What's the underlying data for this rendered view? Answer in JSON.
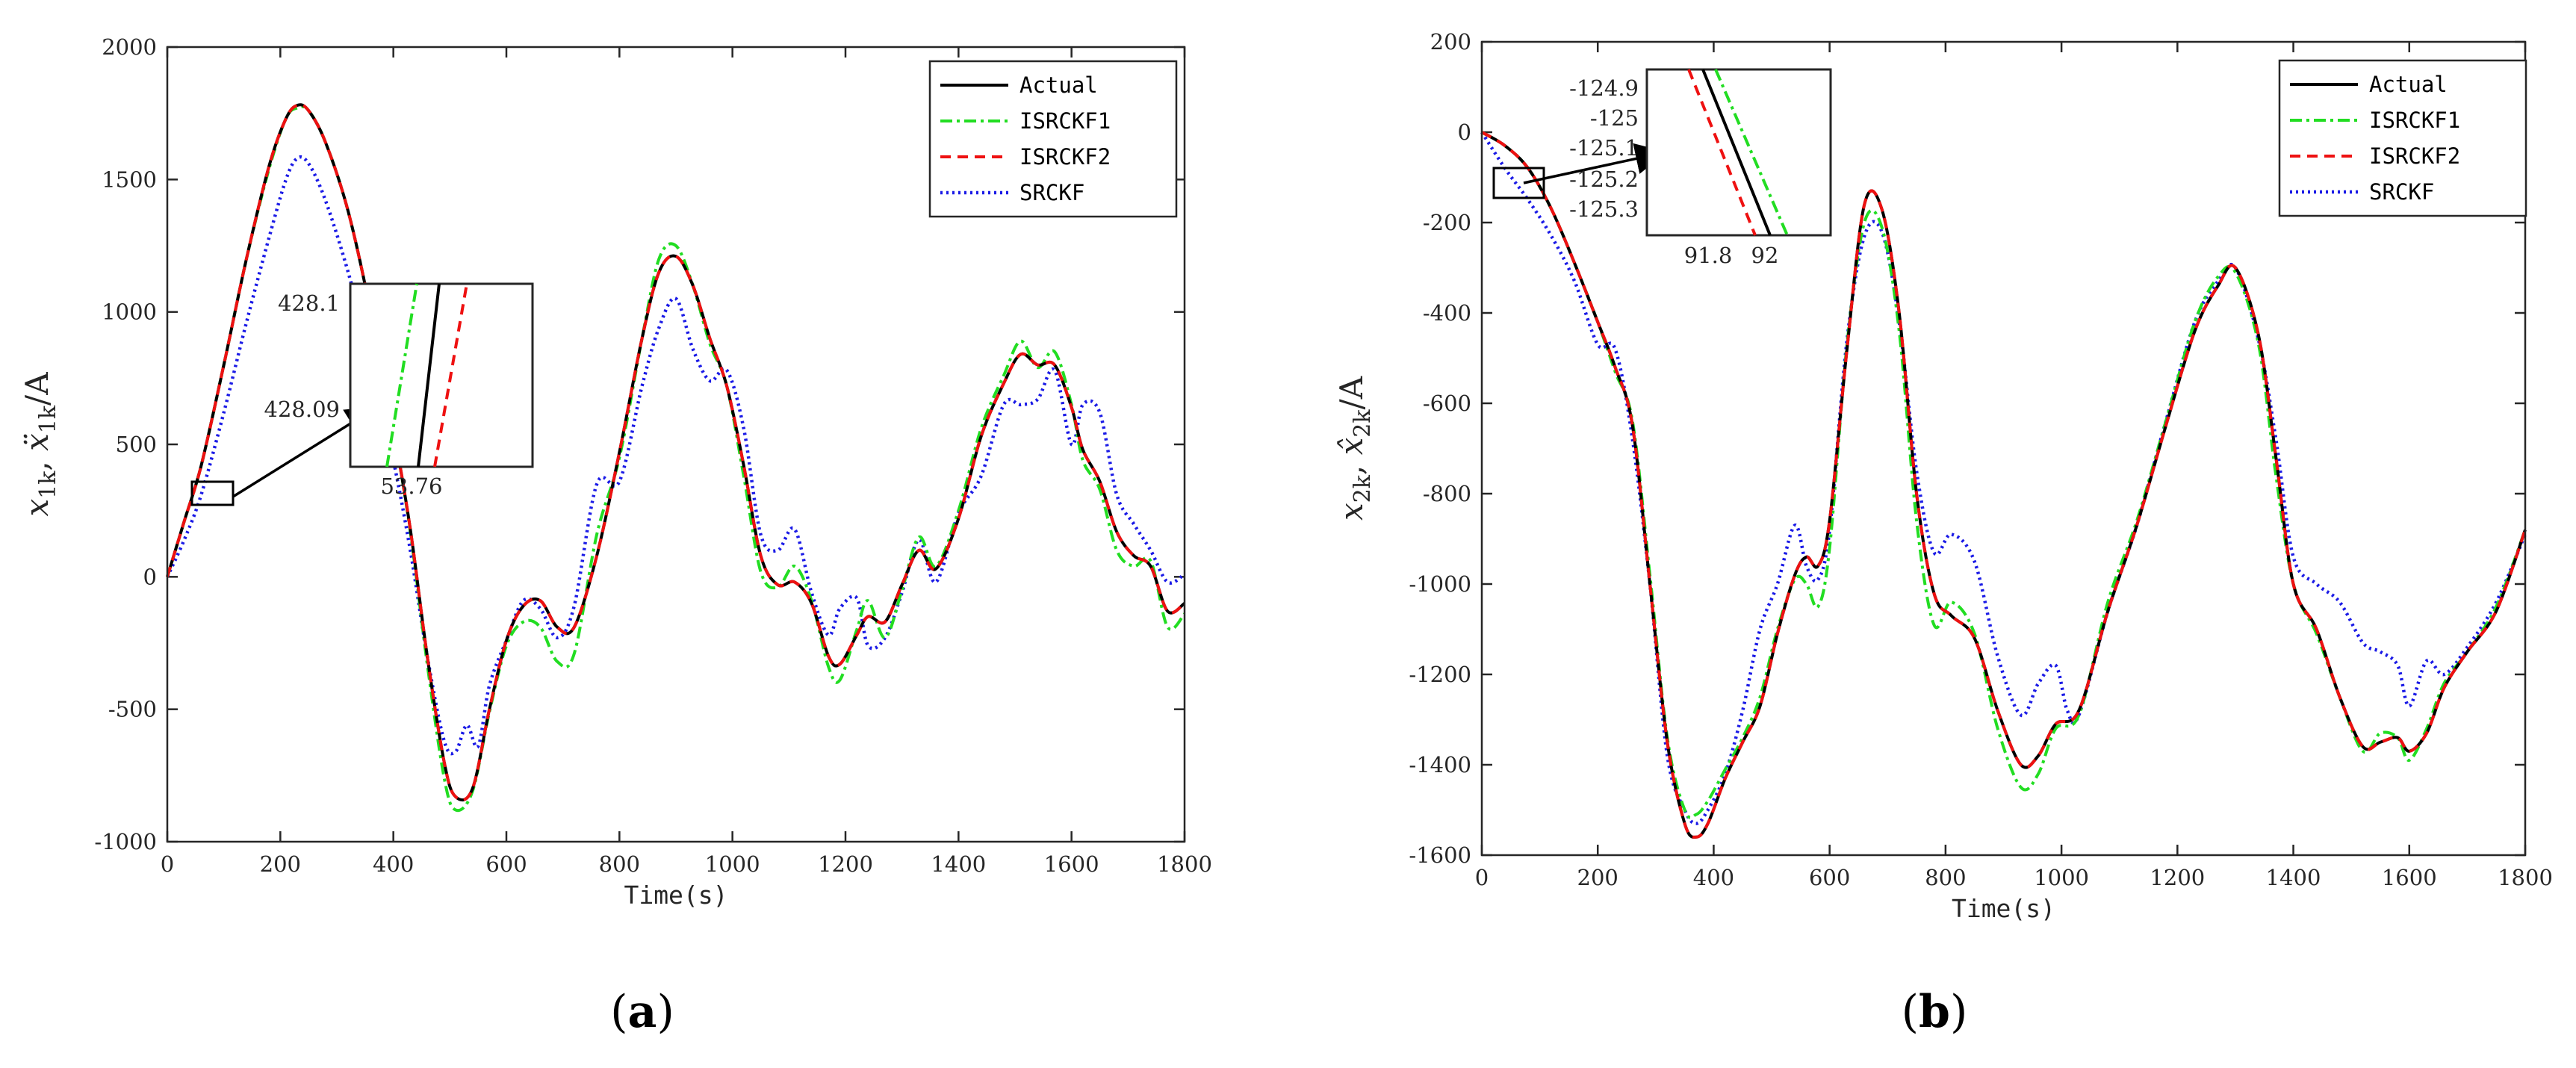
{
  "colors": {
    "actual": "#000000",
    "isrckf1": "#22dd22",
    "isrckf2": "#ee1111",
    "srckf": "#1a1ae6",
    "axis": "#262626"
  },
  "legend": [
    "Actual",
    "ISRCKF1",
    "ISRCKF2",
    "SRCKF"
  ],
  "chart_data": [
    {
      "type": "line",
      "panel_label": "a",
      "xlabel": "Time(s)",
      "ylabel_parts": [
        "x",
        "1k",
        ", ",
        "ẍ",
        "1k",
        "/A"
      ],
      "xlim": [
        0,
        1800
      ],
      "ylim": [
        -1000,
        2000
      ],
      "xticks": [
        "0",
        "200",
        "400",
        "600",
        "800",
        "1000",
        "1200",
        "1400",
        "1600",
        "1800"
      ],
      "yticks": [
        "-1000",
        "-500",
        "0",
        "500",
        "1000",
        "1500",
        "2000"
      ],
      "series": [
        {
          "name": "Actual",
          "x": [
            0,
            30,
            60,
            100,
            140,
            180,
            210,
            230,
            250,
            280,
            320,
            360,
            400,
            430,
            460,
            490,
            510,
            540,
            570,
            600,
            630,
            660,
            690,
            720,
            760,
            800,
            840,
            870,
            900,
            930,
            960,
            990,
            1020,
            1050,
            1080,
            1110,
            1140,
            1170,
            1190,
            1220,
            1240,
            1270,
            1300,
            1330,
            1360,
            1400,
            1440,
            1480,
            1510,
            1540,
            1570,
            1600,
            1620,
            1650,
            1680,
            1710,
            1740,
            1770,
            1800
          ],
          "y": [
            0,
            210,
            420,
            800,
            1200,
            1550,
            1730,
            1780,
            1760,
            1640,
            1380,
            1000,
            560,
            180,
            -300,
            -700,
            -830,
            -800,
            -500,
            -240,
            -110,
            -90,
            -190,
            -190,
            80,
            470,
            900,
            1150,
            1210,
            1100,
            900,
            720,
            420,
            80,
            -30,
            -20,
            -100,
            -300,
            -330,
            -220,
            -150,
            -170,
            -30,
            100,
            30,
            220,
            530,
            730,
            840,
            800,
            800,
            640,
            480,
            360,
            170,
            80,
            40,
            -130,
            -100
          ]
        },
        {
          "name": "ISRCKF1",
          "x": [
            0,
            30,
            60,
            100,
            140,
            180,
            210,
            230,
            250,
            280,
            320,
            360,
            400,
            430,
            460,
            490,
            510,
            540,
            570,
            600,
            630,
            660,
            690,
            720,
            760,
            800,
            840,
            870,
            900,
            930,
            960,
            990,
            1020,
            1050,
            1080,
            1110,
            1140,
            1170,
            1190,
            1220,
            1240,
            1270,
            1300,
            1330,
            1360,
            1400,
            1440,
            1480,
            1510,
            1540,
            1570,
            1600,
            1620,
            1650,
            1680,
            1710,
            1740,
            1770,
            1800
          ],
          "y": [
            0,
            210,
            420,
            800,
            1200,
            1540,
            1730,
            1770,
            1760,
            1640,
            1380,
            1000,
            560,
            170,
            -330,
            -760,
            -880,
            -810,
            -510,
            -260,
            -170,
            -190,
            -320,
            -290,
            160,
            450,
            900,
            1200,
            1250,
            1100,
            880,
            720,
            380,
            20,
            -40,
            40,
            -90,
            -340,
            -390,
            -200,
            -90,
            -230,
            -50,
            150,
            40,
            250,
            560,
            760,
            890,
            790,
            850,
            650,
            440,
            330,
            100,
            40,
            60,
            -190,
            -140
          ]
        },
        {
          "name": "ISRCKF2",
          "x": [
            0,
            30,
            60,
            100,
            140,
            180,
            210,
            230,
            250,
            280,
            320,
            360,
            400,
            430,
            460,
            490,
            510,
            540,
            570,
            600,
            630,
            660,
            690,
            720,
            760,
            800,
            840,
            870,
            900,
            930,
            960,
            990,
            1020,
            1050,
            1080,
            1110,
            1140,
            1170,
            1190,
            1220,
            1240,
            1270,
            1300,
            1330,
            1360,
            1400,
            1440,
            1480,
            1510,
            1540,
            1570,
            1600,
            1620,
            1650,
            1680,
            1710,
            1740,
            1770,
            1800
          ],
          "y": [
            0,
            210,
            420,
            800,
            1200,
            1550,
            1730,
            1780,
            1760,
            1640,
            1380,
            1000,
            560,
            180,
            -300,
            -700,
            -830,
            -800,
            -500,
            -240,
            -110,
            -90,
            -190,
            -190,
            80,
            470,
            900,
            1150,
            1210,
            1100,
            900,
            720,
            420,
            80,
            -30,
            -20,
            -100,
            -300,
            -330,
            -220,
            -150,
            -170,
            -30,
            100,
            30,
            220,
            530,
            730,
            840,
            800,
            800,
            640,
            480,
            360,
            170,
            80,
            40,
            -130,
            -100
          ]
        },
        {
          "name": "SRCKF",
          "x": [
            0,
            30,
            60,
            100,
            140,
            180,
            210,
            230,
            250,
            280,
            320,
            360,
            400,
            430,
            460,
            490,
            510,
            530,
            550,
            570,
            600,
            630,
            660,
            690,
            720,
            760,
            800,
            840,
            870,
            900,
            930,
            960,
            990,
            1020,
            1050,
            1080,
            1110,
            1140,
            1170,
            1190,
            1220,
            1240,
            1270,
            1300,
            1330,
            1360,
            1400,
            1440,
            1480,
            1510,
            1540,
            1570,
            1600,
            1620,
            1650,
            1680,
            1710,
            1740,
            1770,
            1800
          ],
          "y": [
            0,
            140,
            310,
            620,
            960,
            1280,
            1500,
            1580,
            1560,
            1420,
            1150,
            820,
            440,
            100,
            -300,
            -620,
            -660,
            -560,
            -640,
            -410,
            -240,
            -90,
            -120,
            -230,
            -110,
            350,
            360,
            720,
            940,
            1050,
            860,
            740,
            780,
            560,
            160,
            100,
            180,
            -60,
            -220,
            -120,
            -80,
            -260,
            -230,
            -60,
            140,
            -20,
            240,
            380,
            650,
            650,
            670,
            780,
            500,
            650,
            620,
            310,
            200,
            100,
            -20,
            10
          ]
        }
      ],
      "inset": {
        "x_tick": "53.76",
        "y_ticks": [
          "428.1",
          "428.09"
        ]
      }
    },
    {
      "type": "line",
      "panel_label": "b",
      "xlabel": "Time(s)",
      "ylabel_parts": [
        "x",
        "2k",
        ", ",
        "x̂",
        "2k",
        "/A"
      ],
      "xlim": [
        0,
        1800
      ],
      "ylim": [
        -1600,
        200
      ],
      "xticks": [
        "0",
        "200",
        "400",
        "600",
        "800",
        "1000",
        "1200",
        "1400",
        "1600",
        "1800"
      ],
      "yticks": [
        "-1600",
        "-1400",
        "-1200",
        "-1000",
        "-800",
        "-600",
        "-400",
        "-200",
        "0",
        "200"
      ],
      "series": [
        {
          "name": "Actual",
          "x": [
            0,
            40,
            80,
            120,
            160,
            200,
            230,
            260,
            290,
            320,
            350,
            370,
            390,
            420,
            450,
            480,
            510,
            540,
            560,
            580,
            600,
            630,
            660,
            690,
            720,
            750,
            780,
            810,
            850,
            890,
            930,
            960,
            990,
            1030,
            1080,
            1130,
            1180,
            1230,
            1270,
            1300,
            1340,
            1370,
            1400,
            1440,
            1480,
            1520,
            1550,
            1580,
            1600,
            1630,
            1660,
            1700,
            1750,
            1800
          ],
          "y": [
            0,
            -30,
            -80,
            -170,
            -290,
            -420,
            -520,
            -650,
            -1000,
            -1350,
            -1530,
            -1560,
            -1530,
            -1430,
            -1350,
            -1270,
            -1110,
            -980,
            -940,
            -960,
            -860,
            -480,
            -160,
            -170,
            -400,
            -800,
            -1020,
            -1070,
            -1120,
            -1280,
            -1400,
            -1380,
            -1310,
            -1280,
            -1060,
            -870,
            -650,
            -440,
            -340,
            -300,
            -450,
            -720,
            -1000,
            -1100,
            -1250,
            -1360,
            -1350,
            -1340,
            -1370,
            -1330,
            -1230,
            -1150,
            -1060,
            -880
          ]
        },
        {
          "name": "ISRCKF1",
          "x": [
            0,
            40,
            80,
            120,
            160,
            200,
            230,
            260,
            290,
            320,
            350,
            370,
            390,
            420,
            450,
            480,
            510,
            540,
            560,
            580,
            600,
            630,
            660,
            690,
            720,
            750,
            780,
            810,
            850,
            890,
            930,
            960,
            990,
            1030,
            1080,
            1130,
            1180,
            1230,
            1270,
            1300,
            1340,
            1370,
            1400,
            1440,
            1480,
            1520,
            1550,
            1580,
            1600,
            1630,
            1660,
            1700,
            1750,
            1800
          ],
          "y": [
            0,
            -30,
            -80,
            -170,
            -290,
            -420,
            -530,
            -640,
            -980,
            -1340,
            -1500,
            -1510,
            -1480,
            -1410,
            -1340,
            -1250,
            -1100,
            -990,
            -1000,
            -1050,
            -920,
            -470,
            -200,
            -210,
            -440,
            -860,
            -1090,
            -1040,
            -1110,
            -1320,
            -1450,
            -1420,
            -1320,
            -1290,
            -1040,
            -860,
            -640,
            -420,
            -320,
            -310,
            -470,
            -760,
            -1000,
            -1110,
            -1250,
            -1370,
            -1330,
            -1340,
            -1390,
            -1320,
            -1220,
            -1150,
            -1050,
            -880
          ]
        },
        {
          "name": "ISRCKF2",
          "x": [
            0,
            40,
            80,
            120,
            160,
            200,
            230,
            260,
            290,
            320,
            350,
            370,
            390,
            420,
            450,
            480,
            510,
            540,
            560,
            580,
            600,
            630,
            660,
            690,
            720,
            750,
            780,
            810,
            850,
            890,
            930,
            960,
            990,
            1030,
            1080,
            1130,
            1180,
            1230,
            1270,
            1300,
            1340,
            1370,
            1400,
            1440,
            1480,
            1520,
            1550,
            1580,
            1600,
            1630,
            1660,
            1700,
            1750,
            1800
          ],
          "y": [
            0,
            -30,
            -80,
            -170,
            -290,
            -420,
            -520,
            -650,
            -1000,
            -1350,
            -1530,
            -1560,
            -1530,
            -1430,
            -1350,
            -1270,
            -1110,
            -980,
            -940,
            -960,
            -860,
            -480,
            -160,
            -170,
            -400,
            -800,
            -1020,
            -1070,
            -1120,
            -1280,
            -1400,
            -1380,
            -1310,
            -1280,
            -1060,
            -870,
            -650,
            -440,
            -340,
            -300,
            -450,
            -720,
            -1000,
            -1100,
            -1250,
            -1360,
            -1350,
            -1340,
            -1370,
            -1330,
            -1230,
            -1150,
            -1060,
            -880
          ]
        },
        {
          "name": "SRCKF",
          "x": [
            0,
            40,
            80,
            120,
            160,
            200,
            230,
            260,
            290,
            320,
            350,
            370,
            390,
            420,
            450,
            480,
            510,
            540,
            560,
            580,
            600,
            630,
            660,
            690,
            720,
            750,
            780,
            810,
            850,
            890,
            930,
            960,
            990,
            1010,
            1030,
            1080,
            1130,
            1180,
            1230,
            1270,
            1300,
            1340,
            1370,
            1400,
            1440,
            1480,
            1520,
            1550,
            1580,
            1600,
            1630,
            1660,
            1700,
            1750,
            1800
          ],
          "y": [
            0,
            -80,
            -150,
            -230,
            -330,
            -470,
            -480,
            -680,
            -1000,
            -1380,
            -1500,
            -1530,
            -1500,
            -1420,
            -1280,
            -1100,
            -1000,
            -870,
            -960,
            -990,
            -880,
            -460,
            -230,
            -220,
            -420,
            -750,
            -930,
            -890,
            -950,
            -1160,
            -1290,
            -1220,
            -1180,
            -1280,
            -1290,
            -1060,
            -870,
            -640,
            -420,
            -330,
            -300,
            -460,
            -680,
            -940,
            -1000,
            -1040,
            -1130,
            -1150,
            -1180,
            -1270,
            -1170,
            -1200,
            -1140,
            -1040,
            -890
          ]
        }
      ],
      "inset": {
        "x_ticks": [
          "91.8",
          "92"
        ],
        "y_ticks": [
          "-124.9",
          "-125",
          "-125.1",
          "-125.2",
          "-125.3"
        ]
      }
    }
  ]
}
